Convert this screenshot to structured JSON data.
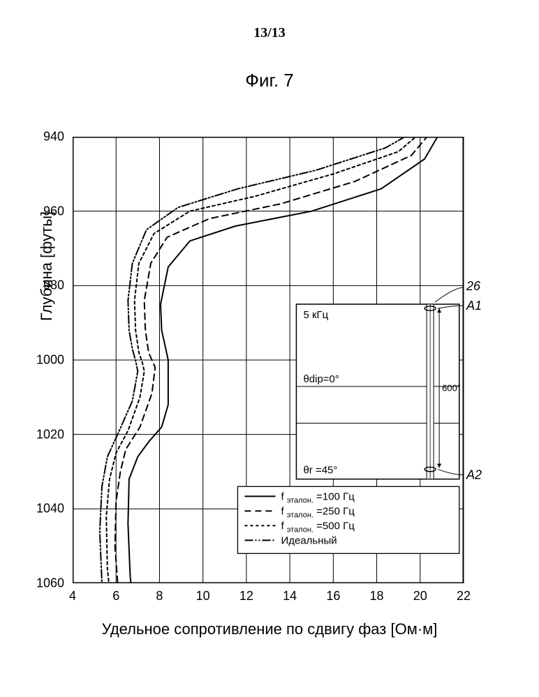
{
  "page_number": "13/13",
  "figure_title": "Фиг. 7",
  "y_axis_label": "Глубина [футы]",
  "x_axis_label": "Удельное сопротивление по сдвигу фаз [Ом·м]",
  "chart": {
    "type": "line",
    "background_color": "#ffffff",
    "grid_color": "#000000",
    "grid_stroke_width": 1,
    "axis_color": "#000000",
    "xlim": [
      4,
      22
    ],
    "ylim_top_value": 940,
    "ylim_bottom_value": 1060,
    "xticks": [
      4,
      6,
      8,
      10,
      12,
      14,
      16,
      18,
      20,
      22
    ],
    "yticks": [
      940,
      960,
      980,
      1000,
      1020,
      1040,
      1060
    ],
    "tick_fontsize": 18,
    "label_fontsize": 22,
    "line_stroke_width": 2,
    "series": [
      {
        "label_prefix": "f",
        "label_sub": "эталон.",
        "label_suffix": " =100 Гц",
        "dash": "none",
        "color": "#000000",
        "points": [
          [
            21.6,
            930
          ],
          [
            21.0,
            938
          ],
          [
            20.2,
            946
          ],
          [
            18.2,
            954
          ],
          [
            15.0,
            960
          ],
          [
            11.5,
            964
          ],
          [
            9.4,
            968
          ],
          [
            8.4,
            975
          ],
          [
            8.05,
            985
          ],
          [
            8.1,
            992
          ],
          [
            8.4,
            1000
          ],
          [
            8.4,
            1012
          ],
          [
            8.1,
            1018
          ],
          [
            7.5,
            1022
          ],
          [
            7.0,
            1026
          ],
          [
            6.6,
            1032
          ],
          [
            6.55,
            1044
          ],
          [
            6.65,
            1058
          ],
          [
            6.85,
            1070
          ]
        ]
      },
      {
        "label_prefix": "f",
        "label_sub": "эталон.",
        "label_suffix": " =250 Гц",
        "dash": "9,6",
        "color": "#000000",
        "points": [
          [
            21.4,
            930
          ],
          [
            20.6,
            938
          ],
          [
            19.6,
            945
          ],
          [
            17.0,
            952
          ],
          [
            13.6,
            958
          ],
          [
            10.3,
            962
          ],
          [
            8.35,
            967
          ],
          [
            7.6,
            974
          ],
          [
            7.3,
            984
          ],
          [
            7.35,
            992
          ],
          [
            7.5,
            998
          ],
          [
            7.8,
            1002
          ],
          [
            7.65,
            1009
          ],
          [
            7.1,
            1018
          ],
          [
            6.45,
            1024
          ],
          [
            6.2,
            1030
          ],
          [
            6.0,
            1038
          ],
          [
            5.95,
            1050
          ],
          [
            6.1,
            1062
          ],
          [
            6.3,
            1070
          ]
        ]
      },
      {
        "label_prefix": "f",
        "label_sub": "эталон.",
        "label_suffix": " =500 Гц",
        "dash": "4,4",
        "color": "#000000",
        "points": [
          [
            21.2,
            930
          ],
          [
            20.2,
            938
          ],
          [
            19.0,
            944
          ],
          [
            16.0,
            950
          ],
          [
            12.4,
            956
          ],
          [
            9.4,
            960
          ],
          [
            7.75,
            966
          ],
          [
            7.05,
            974
          ],
          [
            6.85,
            984
          ],
          [
            6.9,
            992
          ],
          [
            7.05,
            998
          ],
          [
            7.2,
            1000.5
          ],
          [
            7.3,
            1003
          ],
          [
            7.1,
            1010
          ],
          [
            6.55,
            1019
          ],
          [
            6.0,
            1025
          ],
          [
            5.7,
            1032
          ],
          [
            5.55,
            1042
          ],
          [
            5.6,
            1056
          ],
          [
            5.85,
            1070
          ]
        ]
      },
      {
        "label_prefix": "",
        "label_sub": "",
        "label_suffix": "Идеальный",
        "dash": "12,3,2,3,2,3",
        "color": "#000000",
        "points": [
          [
            21.0,
            930
          ],
          [
            19.9,
            938
          ],
          [
            18.4,
            943
          ],
          [
            15.2,
            949
          ],
          [
            11.6,
            954
          ],
          [
            8.85,
            959
          ],
          [
            7.4,
            965
          ],
          [
            6.75,
            974
          ],
          [
            6.55,
            984
          ],
          [
            6.6,
            992
          ],
          [
            6.75,
            997
          ],
          [
            6.9,
            1000.2
          ],
          [
            7.0,
            1003
          ],
          [
            6.75,
            1011
          ],
          [
            6.15,
            1019
          ],
          [
            5.6,
            1026
          ],
          [
            5.35,
            1034
          ],
          [
            5.25,
            1046
          ],
          [
            5.35,
            1060
          ],
          [
            5.6,
            1070
          ]
        ]
      }
    ]
  },
  "legend": {
    "border_color": "#000000",
    "bg_color": "#ffffff",
    "fontsize": 15
  },
  "inset": {
    "border_color": "#000000",
    "bg_color": "#ffffff",
    "main_freq": "5 кГц",
    "dip_label": "θdip=0°",
    "r_label": "θr =45°",
    "span_label": "600\"",
    "top_annot": {
      "num": "26",
      "label": "A1"
    },
    "bottom_annot": {
      "label": "A2"
    },
    "fontsize": 15,
    "italic_fontsize": 18
  }
}
